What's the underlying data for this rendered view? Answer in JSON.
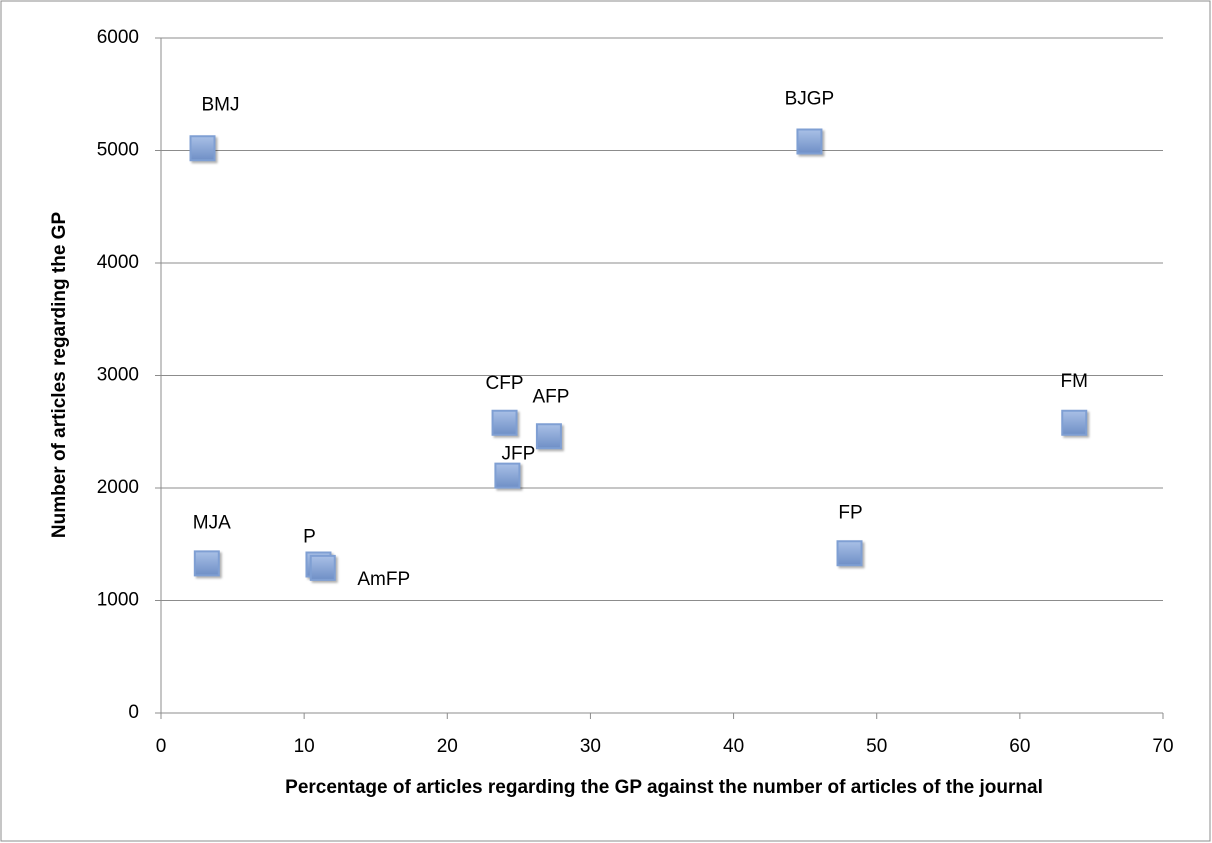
{
  "chart_data": {
    "type": "scatter",
    "x_label": "Percentage of articles regarding the GP against the number of articles of the journal",
    "y_label": "Number of articles regarding the GP",
    "labels": [
      "BMJ",
      "BJGP",
      "CFP",
      "AFP",
      "JFP",
      "FM",
      "FP",
      "MJA",
      "P",
      "AmFP"
    ],
    "x": [
      2.9,
      45.3,
      24.0,
      27.1,
      24.2,
      63.8,
      48.1,
      3.2,
      11.0,
      11.3
    ],
    "y": [
      5020,
      5080,
      2580,
      2460,
      2110,
      2580,
      1420,
      1330,
      1320,
      1290
    ],
    "xlim": [
      0,
      70
    ],
    "xticks": [
      0,
      10,
      20,
      30,
      40,
      50,
      60,
      70
    ],
    "ylim": [
      0,
      6000
    ],
    "yticks": [
      0,
      1000,
      2000,
      3000,
      4000,
      5000,
      6000
    ],
    "color": "#7f9fd3",
    "grid": true
  }
}
